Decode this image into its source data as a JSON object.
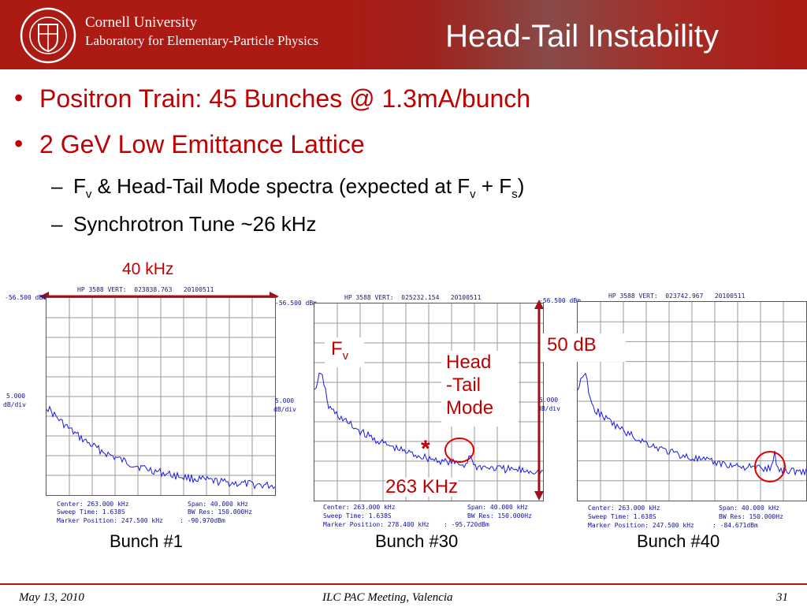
{
  "header": {
    "university": "Cornell University",
    "lab": "Laboratory for Elementary-Particle Physics",
    "title": "Head-Tail Instability"
  },
  "bullets": [
    "Positron Train:  45 Bunches @ 1.3mA/bunch",
    "2 GeV Low Emittance Lattice"
  ],
  "subbullets": {
    "line1_a": "F",
    "line1_sub1": "v",
    "line1_b": " & Head-Tail Mode spectra (expected at F",
    "line1_sub2": "v",
    "line1_c": " + F",
    "line1_sub3": "s",
    "line1_d": ")",
    "line2": "Synchrotron Tune ~26 kHz"
  },
  "annotations": {
    "span": "40 kHz",
    "fv": "F",
    "fv_sub": "v",
    "headtail": [
      "Head",
      "-Tail",
      "Mode"
    ],
    "db": "50 dB",
    "freq": "263 KHz",
    "star": "*"
  },
  "panels": [
    {
      "header": "HP 3588 VERT:  023838.763   20100511",
      "ref": "-56.500 dBm",
      "scale": [
        "5.000",
        "dB/div"
      ],
      "footer": [
        "Center: 263.000 kHz",
        "Span: 40.000 kHz",
        "Sweep Time: 1.638S",
        "BW Res: 150.000Hz",
        "Marker Position: 247.500 kHz",
        ": -90.970dBm"
      ],
      "caption": "Bunch #1"
    },
    {
      "header": "HP 3588 VERT:  025232.154   20100511",
      "ref": "-56.500 dBm",
      "scale": [
        "5.000",
        "dB/div"
      ],
      "footer": [
        "Center: 263.000 kHz",
        "Span: 40.000 kHz",
        "Sweep Time: 1.638S",
        "BW Res: 150.000Hz",
        "Marker Position: 278.400 kHz",
        ": -95.720dBm"
      ],
      "caption": "Bunch #30"
    },
    {
      "header": "HP 3588 VERT:  023742.967   20100511",
      "ref": "-56.500 dBm",
      "scale": [
        "5.000",
        "dB/div"
      ],
      "footer": [
        "Center: 263.000 kHz",
        "Span: 40.000 kHz",
        "Sweep Time: 1.638S",
        "BW Res: 150.000Hz",
        "Marker Position: 247.500 kHz",
        ": -84.671dBm"
      ],
      "caption": "Bunch #40"
    }
  ],
  "footer": {
    "date": "May 13, 2010",
    "meeting": "ILC PAC Meeting, Valencia",
    "page": "31"
  },
  "colors": {
    "brand": "#ac1a14",
    "accent_text": "#c00000",
    "trace": "#1a1ae0"
  }
}
